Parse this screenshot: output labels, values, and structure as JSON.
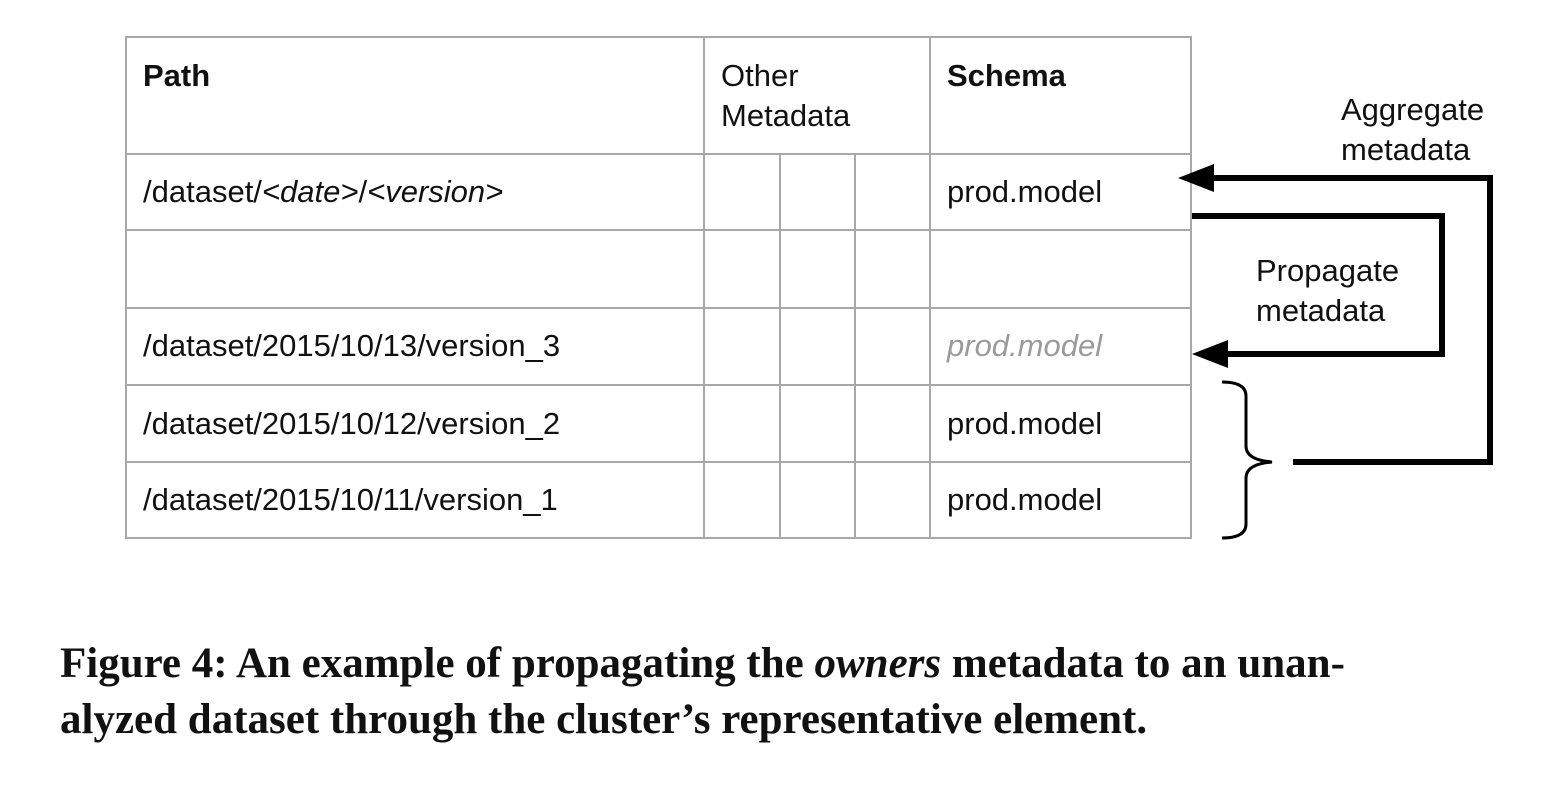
{
  "table": {
    "headers": {
      "path": "Path",
      "other_line1": "Other",
      "other_line2": "Metadata",
      "schema": "Schema"
    },
    "rows": [
      {
        "path_prefix": "/dataset/",
        "path_date": "<date>",
        "path_sep": "/",
        "path_version": "<version>",
        "schema": "prod.model"
      },
      {
        "path": "",
        "schema": ""
      },
      {
        "path": "/dataset/2015/10/13/version_3",
        "schema": "prod.model"
      },
      {
        "path": "/dataset/2015/10/12/version_2",
        "schema": "prod.model"
      },
      {
        "path": "/dataset/2015/10/11/version_1",
        "schema": "prod.model"
      }
    ]
  },
  "arrows": {
    "aggregate_line1": "Aggregate",
    "aggregate_line2": "metadata",
    "propagate_line1": "Propagate",
    "propagate_line2": "metadata"
  },
  "caption": {
    "part1": "Figure 4: An example of propagating the ",
    "emph": "owners",
    "part2": " metadata to an unan-",
    "line2": "alyzed dataset through the cluster’s representative element."
  }
}
